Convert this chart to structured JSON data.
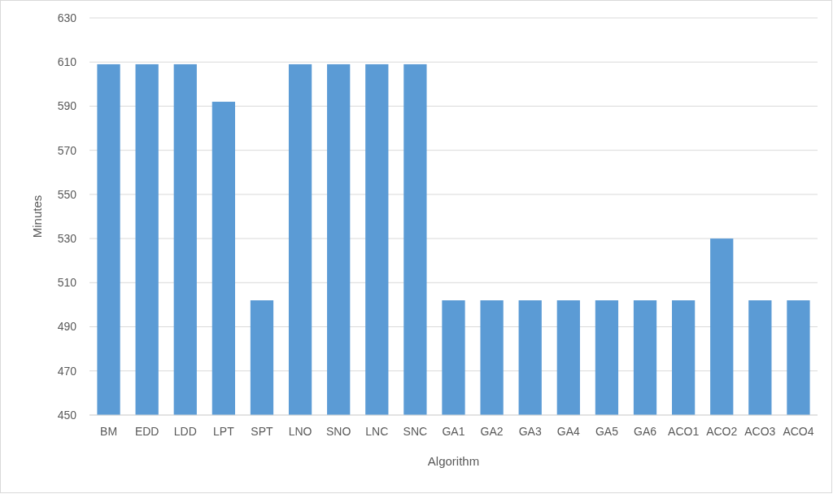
{
  "chart_data": {
    "type": "bar",
    "xlabel": "Algorithm",
    "ylabel": "Minutes",
    "categories": [
      "BM",
      "EDD",
      "LDD",
      "LPT",
      "SPT",
      "LNO",
      "SNO",
      "LNC",
      "SNC",
      "GA1",
      "GA2",
      "GA3",
      "GA4",
      "GA5",
      "GA6",
      "ACO1",
      "ACO2",
      "ACO3",
      "ACO4"
    ],
    "values": [
      609,
      609,
      609,
      592,
      502,
      609,
      609,
      609,
      609,
      502,
      502,
      502,
      502,
      502,
      502,
      502,
      530,
      502,
      502
    ],
    "color": "#5b9bd5",
    "ylim": [
      450,
      630
    ],
    "yticks": [
      450,
      470,
      490,
      510,
      530,
      550,
      570,
      590,
      610,
      630
    ],
    "grid": "y"
  }
}
